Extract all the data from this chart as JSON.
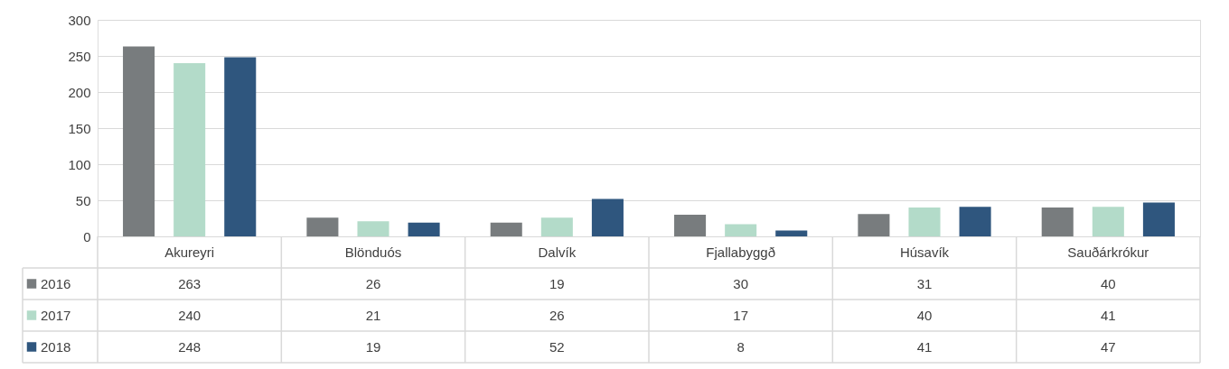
{
  "chart_data": {
    "type": "bar",
    "categories": [
      "Akureyri",
      "Blönduós",
      "Dalvík",
      "Fjallabyggð",
      "Húsavík",
      "Sauðárkrókur"
    ],
    "series": [
      {
        "name": "2016",
        "color": "#787c7e",
        "values": [
          263,
          26,
          19,
          30,
          31,
          40
        ]
      },
      {
        "name": "2017",
        "color": "#b3dbc9",
        "values": [
          240,
          21,
          26,
          17,
          40,
          41
        ]
      },
      {
        "name": "2018",
        "color": "#2f567e",
        "values": [
          248,
          19,
          52,
          8,
          41,
          47
        ]
      }
    ],
    "ylim": [
      0,
      300
    ],
    "yticks": [
      0,
      50,
      100,
      150,
      200,
      250,
      300
    ],
    "grid": "y",
    "legend": "bottom",
    "data_labels": true
  }
}
